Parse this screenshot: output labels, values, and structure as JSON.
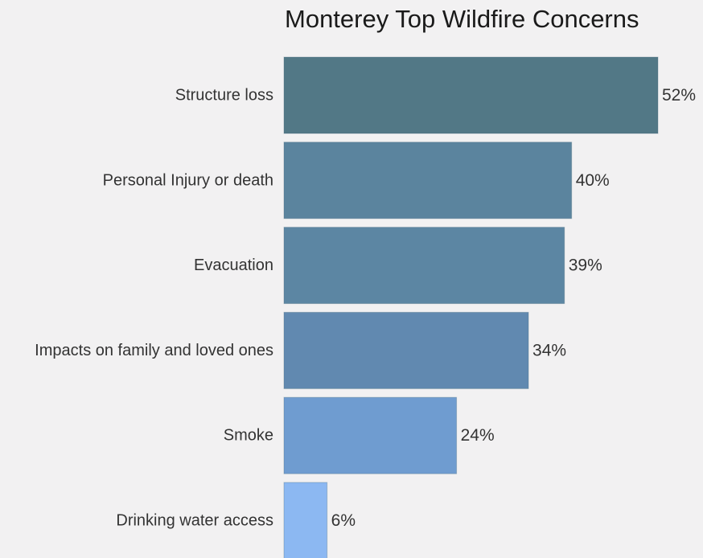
{
  "chart_data": {
    "type": "bar",
    "orientation": "horizontal",
    "title": "Monterey Top Wildfire Concerns",
    "xlabel": "",
    "ylabel": "",
    "categories": [
      "Structure loss",
      "Personal Injury or death",
      "Evacuation",
      "Impacts on family and loved ones",
      "Smoke",
      "Drinking water access"
    ],
    "values": [
      52,
      40,
      39,
      34,
      24,
      6
    ],
    "value_labels": [
      "52%",
      "40%",
      "39%",
      "34%",
      "24%",
      "6%"
    ],
    "bar_colors": [
      "#527886",
      "#5b849e",
      "#5c86a3",
      "#6189b0",
      "#6f9cd0",
      "#8cb8f2"
    ],
    "xlim": [
      0,
      52
    ],
    "grid": false,
    "legend": "none",
    "sorted": "descending"
  }
}
